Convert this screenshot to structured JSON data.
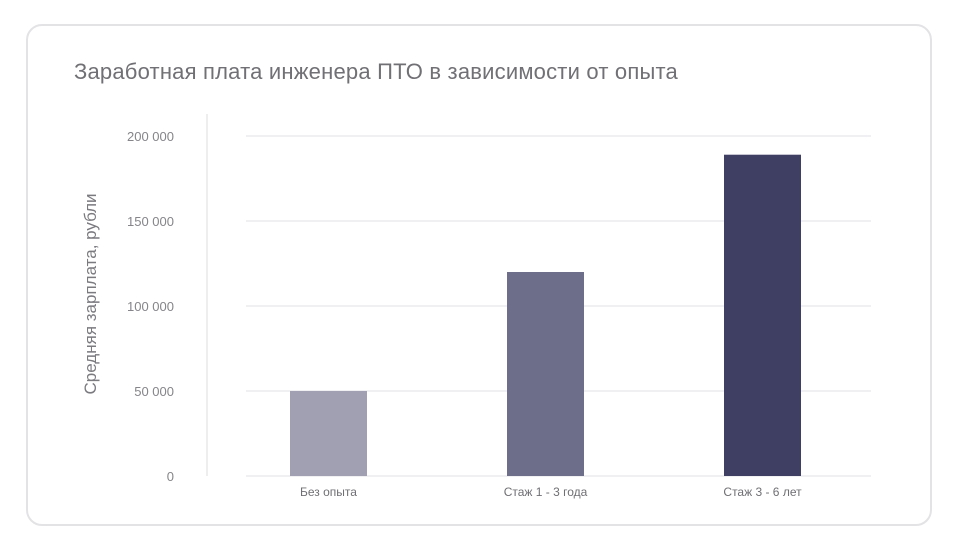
{
  "chart_data": {
    "type": "bar",
    "title": "Заработная плата инженера ПТО в зависимости от опыта",
    "xlabel": "",
    "ylabel": "Средняя зарплата, рубли",
    "categories": [
      "Без опыта",
      "Стаж 1 - 3 года",
      "Стаж 3 - 6 лет"
    ],
    "values": [
      50000,
      120000,
      189000
    ],
    "bar_colors": [
      "#a0a0b2",
      "#6d6e89",
      "#3f3e63"
    ],
    "ylim": [
      0,
      200000
    ],
    "yticks": [
      0,
      50000,
      100000,
      150000,
      200000
    ],
    "ytick_labels": [
      "0",
      "50 000",
      "100 000",
      "150 000",
      "200 000"
    ],
    "grid": true,
    "legend": "none"
  }
}
